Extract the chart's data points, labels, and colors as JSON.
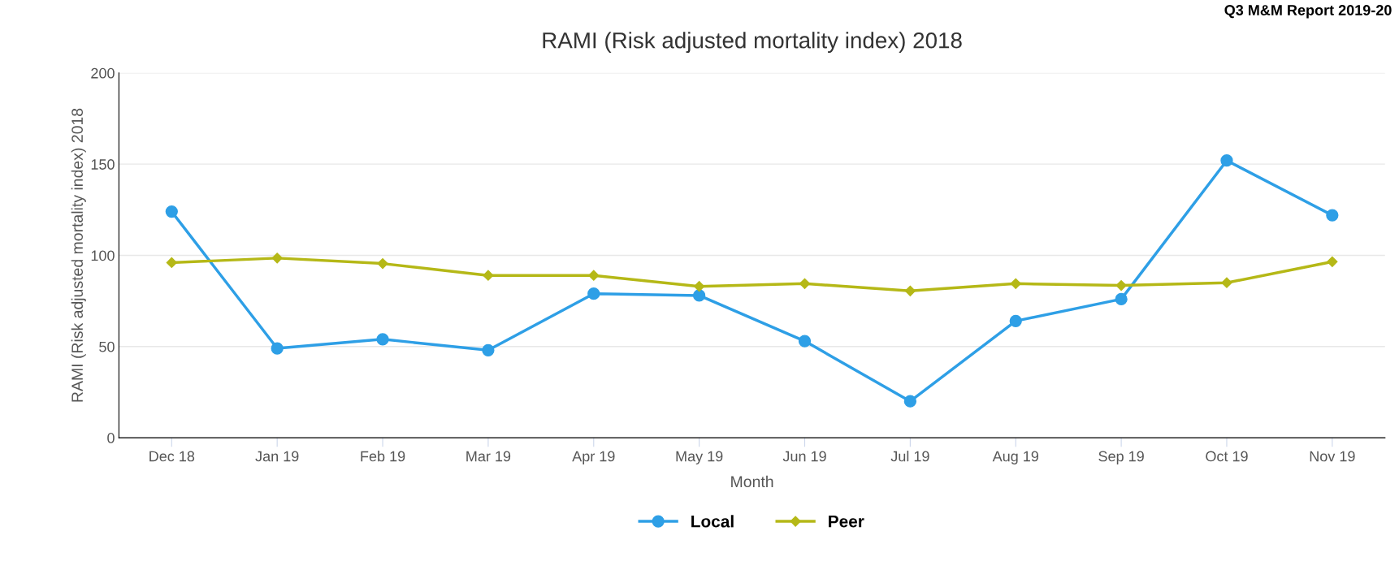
{
  "chart_data": {
    "type": "line",
    "title": "RAMI (Risk adjusted mortality index) 2018",
    "xlabel": "Month",
    "ylabel": "RAMI (Risk adjusted mortality index) 2018",
    "annotations": [
      "Q3 M&M Report 2019-20"
    ],
    "categories": [
      "Dec 18",
      "Jan 19",
      "Feb 19",
      "Mar 19",
      "Apr 19",
      "May 19",
      "Jun 19",
      "Jul 19",
      "Aug 19",
      "Sep 19",
      "Oct 19",
      "Nov 19"
    ],
    "series": [
      {
        "name": "Local",
        "color": "#2e9fe6",
        "marker": "circle",
        "values": [
          124,
          49,
          54,
          48,
          79,
          78,
          53,
          20,
          64,
          76,
          152,
          122
        ]
      },
      {
        "name": "Peer",
        "color": "#b5b817",
        "marker": "diamond",
        "values": [
          96,
          98.5,
          95.5,
          89,
          89,
          83,
          84.5,
          80.5,
          84.5,
          83.5,
          85,
          96.5
        ]
      }
    ],
    "ylim": [
      0,
      200
    ],
    "yticks": [
      0,
      50,
      100,
      150,
      200
    ],
    "grid": "y",
    "legend": "bottom"
  }
}
